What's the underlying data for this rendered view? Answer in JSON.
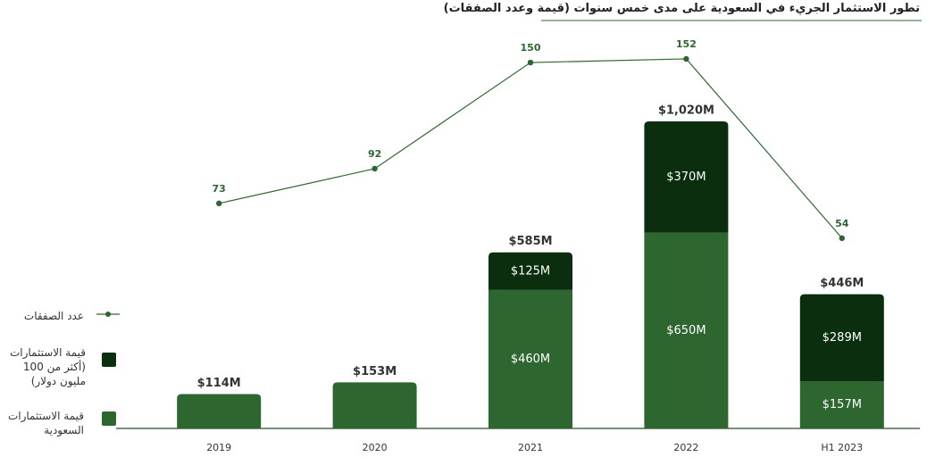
{
  "chart_data": {
    "type": "bar",
    "title": "تطور الاستثمار الجريء في السعودية على مدى خمس سنوات (قيمة وعدد الصفقات)",
    "categories": [
      "2019",
      "2020",
      "2021",
      "2022",
      "H1 2023"
    ],
    "series": [
      {
        "name": "قيمة الاستثمارات السعودية",
        "color": "#2e6630",
        "values": [
          114,
          153,
          460,
          650,
          157
        ],
        "value_labels": [
          null,
          null,
          "$460M",
          "$650M",
          "$157M"
        ]
      },
      {
        "name": "قيمة الاستثمارات (أكثر من 100 مليون دولار)",
        "color": "#0b2f0e",
        "values": [
          null,
          null,
          125,
          370,
          289
        ],
        "value_labels": [
          null,
          null,
          "$125M",
          "$370M",
          "$289M"
        ]
      },
      {
        "name": "عدد الصفقات",
        "type": "line",
        "axis": "y2",
        "color": "#2e6630",
        "values": [
          73,
          92,
          150,
          152,
          54
        ]
      }
    ],
    "totals": [
      114,
      153,
      585,
      1020,
      446
    ],
    "total_labels": [
      "$114M",
      "$153M",
      "$585M",
      "$1,020M",
      "$446M"
    ],
    "ylim": [
      0,
      1100
    ],
    "y2lim": [
      -50,
      131
    ]
  }
}
